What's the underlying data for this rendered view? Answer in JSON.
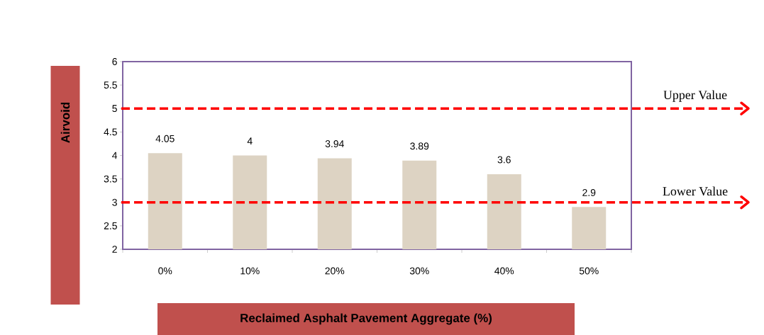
{
  "chart_data": {
    "type": "bar",
    "xlabel": "Reclaimed Asphalt Pavement  Aggregate (%)",
    "ylabel": "Airvoid",
    "categories": [
      "0%",
      "10%",
      "20%",
      "30%",
      "40%",
      "50%"
    ],
    "values": [
      4.05,
      4,
      3.94,
      3.89,
      3.6,
      2.9
    ],
    "color": "#ddd3c3",
    "data_labels": true,
    "ylim": [
      2,
      6
    ],
    "yticks": [
      2,
      2.5,
      3,
      3.5,
      4,
      4.5,
      5,
      5.5,
      6
    ],
    "ref_lines": [
      {
        "axis": "y",
        "value": 5,
        "label": "Upper Value",
        "color": "#ff0000",
        "line_style": "dashed"
      },
      {
        "axis": "y",
        "value": 3,
        "label": "Lower Value",
        "color": "#ff0000",
        "line_style": "dashed"
      }
    ]
  }
}
